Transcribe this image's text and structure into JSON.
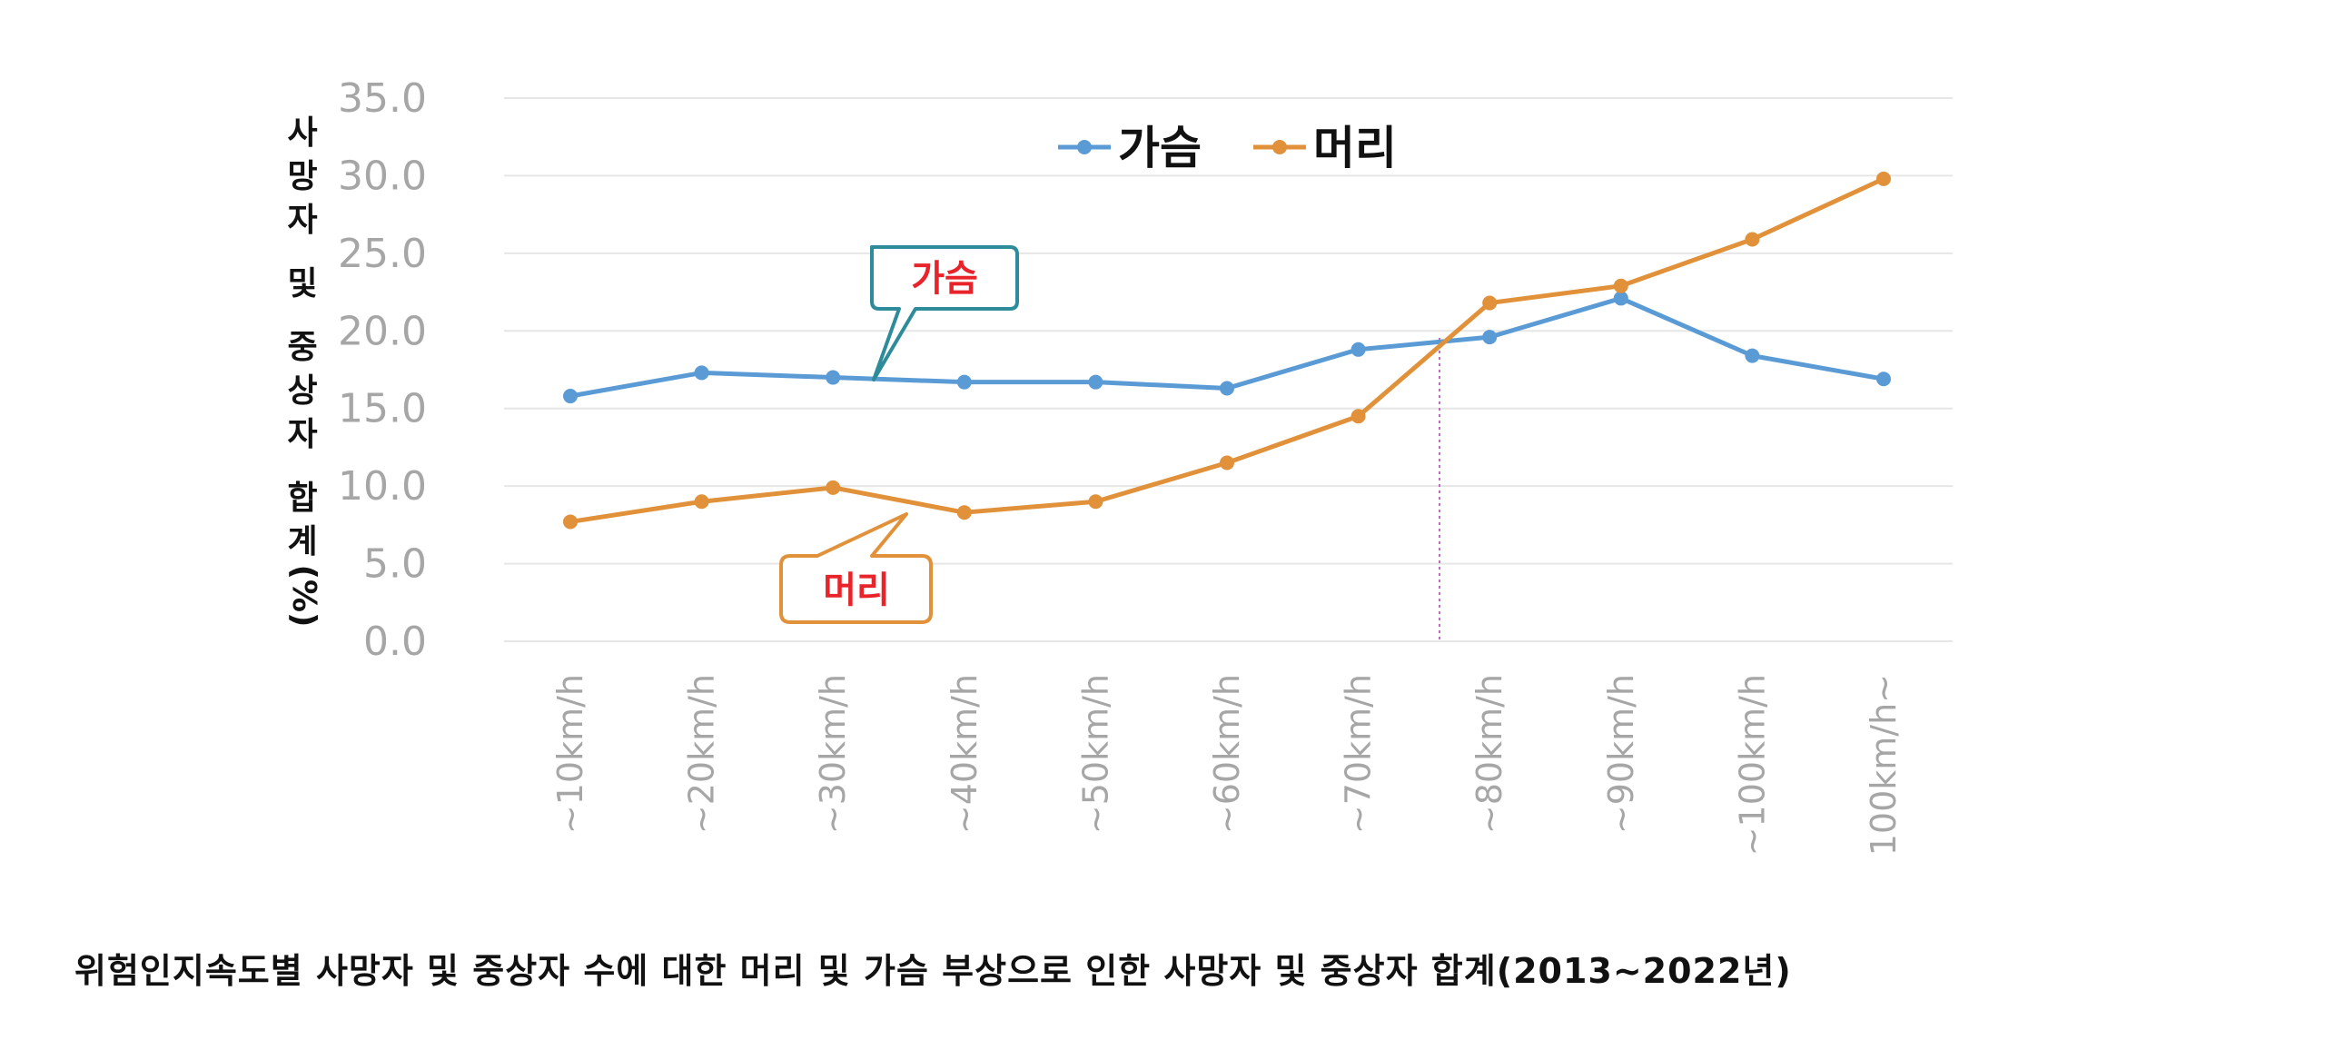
{
  "chart_data": {
    "type": "line",
    "categories": [
      "~10km/h",
      "~20km/h",
      "~30km/h",
      "~40km/h",
      "~50km/h",
      "~60km/h",
      "~70km/h",
      "~80km/h",
      "~90km/h",
      "~100km/h",
      "100km/h~"
    ],
    "series": [
      {
        "name": "가슴",
        "color": "#5b9bd5",
        "values": [
          15.8,
          17.3,
          17.0,
          16.7,
          16.7,
          16.3,
          18.8,
          19.6,
          22.1,
          18.4,
          16.9
        ]
      },
      {
        "name": "머리",
        "color": "#e0913a",
        "values": [
          7.7,
          9.0,
          9.9,
          8.3,
          9.0,
          11.5,
          14.5,
          21.8,
          22.9,
          25.9,
          29.8
        ]
      }
    ],
    "ylim": [
      0,
      35
    ],
    "yticks": [
      "0.0",
      "5.0",
      "10.0",
      "15.0",
      "20.0",
      "25.0",
      "30.0",
      "35.0"
    ],
    "ylabel": "사망자 및 중상자 합계",
    "ylabel_unit": "(%)",
    "legend_position": "top-center",
    "grid": true,
    "callouts": [
      {
        "text": "가슴",
        "series": "가슴"
      },
      {
        "text": "머리",
        "series": "머리"
      }
    ],
    "crossover_marker": "dotted vertical line between ~70km/h and ~80km/h"
  },
  "caption": "위험인지속도별 사망자 및 중상자 수에 대한 머리 및 가슴 부상으로 인한 사망자 및 중상자 합계(2013~2022년)"
}
